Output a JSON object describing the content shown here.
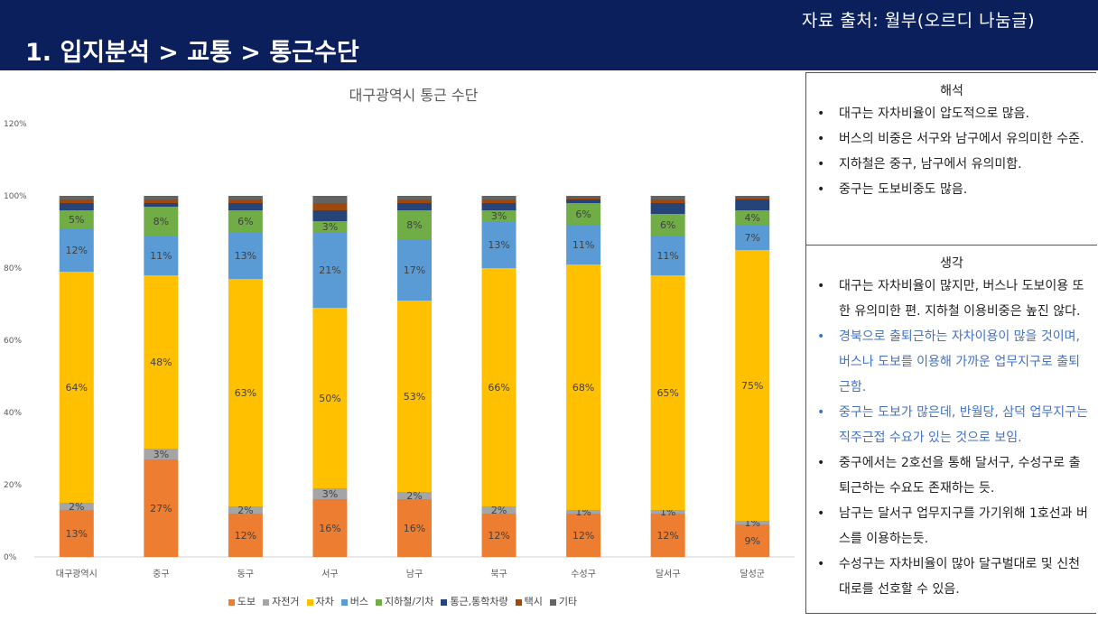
{
  "header": {
    "source": "자료 출처: 월부(오르디 나눔글)",
    "title": "1. 입지분석 > 교통 > 통근수단"
  },
  "colors": {
    "header_bg": "#0a1f5c",
    "segments": [
      "#ed7d31",
      "#a5a5a5",
      "#ffc000",
      "#5b9bd5",
      "#70ad47",
      "#264478",
      "#9e480e",
      "#636363"
    ]
  },
  "chart_data": {
    "type": "bar",
    "stacked": true,
    "title": "대구광역시 통근 수단",
    "categories": [
      "대구광역시",
      "중구",
      "동구",
      "서구",
      "남구",
      "북구",
      "수성구",
      "달서구",
      "달성군"
    ],
    "ylim": [
      0,
      120
    ],
    "yticks": [
      "0%",
      "20%",
      "40%",
      "60%",
      "80%",
      "100%",
      "120%"
    ],
    "series": [
      {
        "name": "도보",
        "values": [
          13,
          27,
          12,
          16,
          16,
          12,
          12,
          12,
          9
        ],
        "labels": [
          "13%",
          "27%",
          "12%",
          "16%",
          "16%",
          "12%",
          "12%",
          "12%",
          "9%"
        ]
      },
      {
        "name": "자전거",
        "values": [
          2,
          3,
          2,
          3,
          2,
          2,
          1,
          1,
          1
        ],
        "labels": [
          "2%",
          "3%",
          "2%",
          "3%",
          "2%",
          "2%",
          "1%",
          "1%",
          "1%"
        ]
      },
      {
        "name": "자차",
        "values": [
          64,
          48,
          63,
          50,
          53,
          66,
          68,
          65,
          75
        ],
        "labels": [
          "64%",
          "48%",
          "63%",
          "50%",
          "53%",
          "66%",
          "68%",
          "65%",
          "75%"
        ]
      },
      {
        "name": "버스",
        "values": [
          12,
          11,
          13,
          21,
          17,
          13,
          11,
          11,
          7
        ],
        "labels": [
          "12%",
          "11%",
          "13%",
          "21%",
          "17%",
          "13%",
          "11%",
          "11%",
          "7%"
        ]
      },
      {
        "name": "지하철/기차",
        "values": [
          5,
          8,
          6,
          3,
          8,
          3,
          6,
          6,
          4
        ],
        "labels": [
          "5%",
          "8%",
          "6%",
          "3%",
          "8%",
          "3%",
          "6%",
          "6%",
          "4%"
        ]
      },
      {
        "name": "통근,통학차량",
        "values": [
          2,
          1,
          2,
          3,
          2,
          2,
          1,
          3,
          3
        ],
        "labels": [
          "",
          "",
          "",
          "",
          "",
          "",
          "",
          "",
          ""
        ]
      },
      {
        "name": "택시",
        "values": [
          1,
          1,
          1,
          2,
          1,
          1,
          0.5,
          1,
          0.5
        ],
        "labels": [
          "",
          "",
          "",
          "",
          "",
          "",
          "",
          "",
          ""
        ]
      },
      {
        "name": "기타",
        "values": [
          1,
          1,
          1,
          2,
          1,
          1,
          0.5,
          1,
          0.5
        ],
        "labels": [
          "",
          "",
          "",
          "",
          "",
          "",
          "",
          "",
          ""
        ]
      }
    ],
    "legend_position": "bottom",
    "grid": false
  },
  "panel": {
    "interpretation_title": "해석",
    "interpretation": [
      "대구는 자차비율이 압도적으로 많음.",
      "버스의 비중은 서구와 남구에서 유의미한 수준.",
      "지하철은 중구, 남구에서 유의미함.",
      "중구는 도보비중도 많음."
    ],
    "thoughts_title": "생각",
    "thoughts": [
      {
        "text": "대구는 자차비율이 많지만, 버스나 도보이용 또한 유의미한 편. 지하철 이용비중은 높진 않다.",
        "blue": false
      },
      {
        "text": "경북으로 출퇴근하는 자차이용이 많을 것이며, 버스나 도보를 이용해 가까운 업무지구로 출퇴근함.",
        "blue": true
      },
      {
        "text": "중구는 도보가 많은데, 반월당, 삼덕 업무지구는 직주근접 수요가 있는 것으로 보임.",
        "blue": true
      },
      {
        "text": "중구에서는 2호선을 통해 달서구, 수성구로 출퇴근하는 수요도 존재하는 듯.",
        "blue": false
      },
      {
        "text": "남구는 달서구 업무지구를 가기위해 1호선과 버스를 이용하는듯.",
        "blue": false
      },
      {
        "text": "수성구는 자차비율이 많아 달구벌대로 및 신천대로를 선호할 수 있음.",
        "blue": false
      }
    ]
  }
}
